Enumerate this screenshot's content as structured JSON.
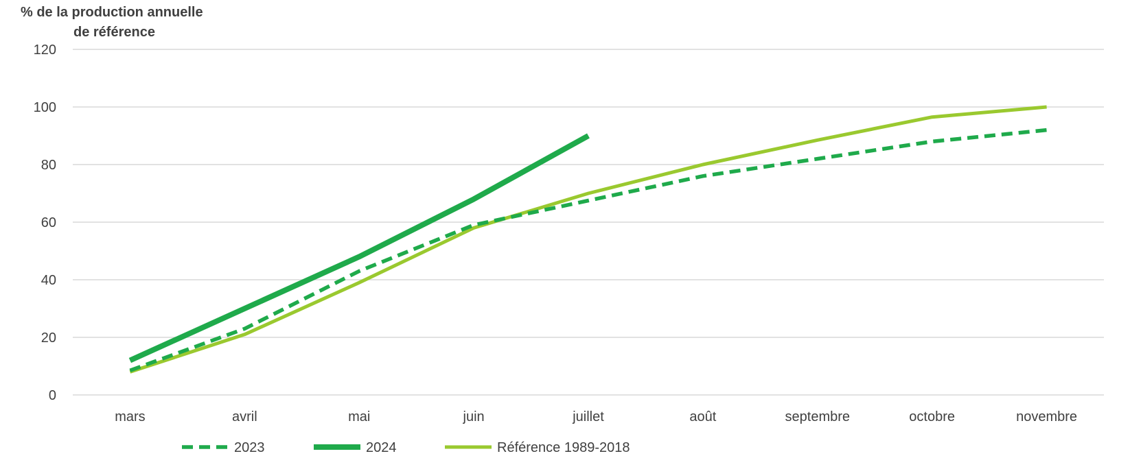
{
  "chart_data": {
    "type": "line",
    "ylabel_lines": [
      "% de  la production  annuelle",
      "de référence"
    ],
    "xlabel": "",
    "categories": [
      "mars",
      "avril",
      "mai",
      "juin",
      "juillet",
      "août",
      "septembre",
      "octobre",
      "novembre"
    ],
    "ylim": [
      0,
      120
    ],
    "yticks": [
      0,
      20,
      40,
      60,
      80,
      100,
      120
    ],
    "grid": true,
    "legend_position": "bottom",
    "series": [
      {
        "name": "2023",
        "style": "dashed",
        "color": "#1faa4b",
        "values": [
          8.5,
          23,
          43,
          59,
          67.5,
          76,
          82,
          88,
          92
        ]
      },
      {
        "name": "2024",
        "style": "solid-thick",
        "color": "#1faa4b",
        "values": [
          12,
          30,
          48,
          68,
          90,
          null,
          null,
          null,
          null
        ]
      },
      {
        "name": "Référence 1989-2018",
        "style": "solid",
        "color": "#9ac92f",
        "values": [
          8,
          21,
          39,
          58,
          70,
          80,
          88.5,
          96.5,
          100
        ]
      }
    ]
  }
}
